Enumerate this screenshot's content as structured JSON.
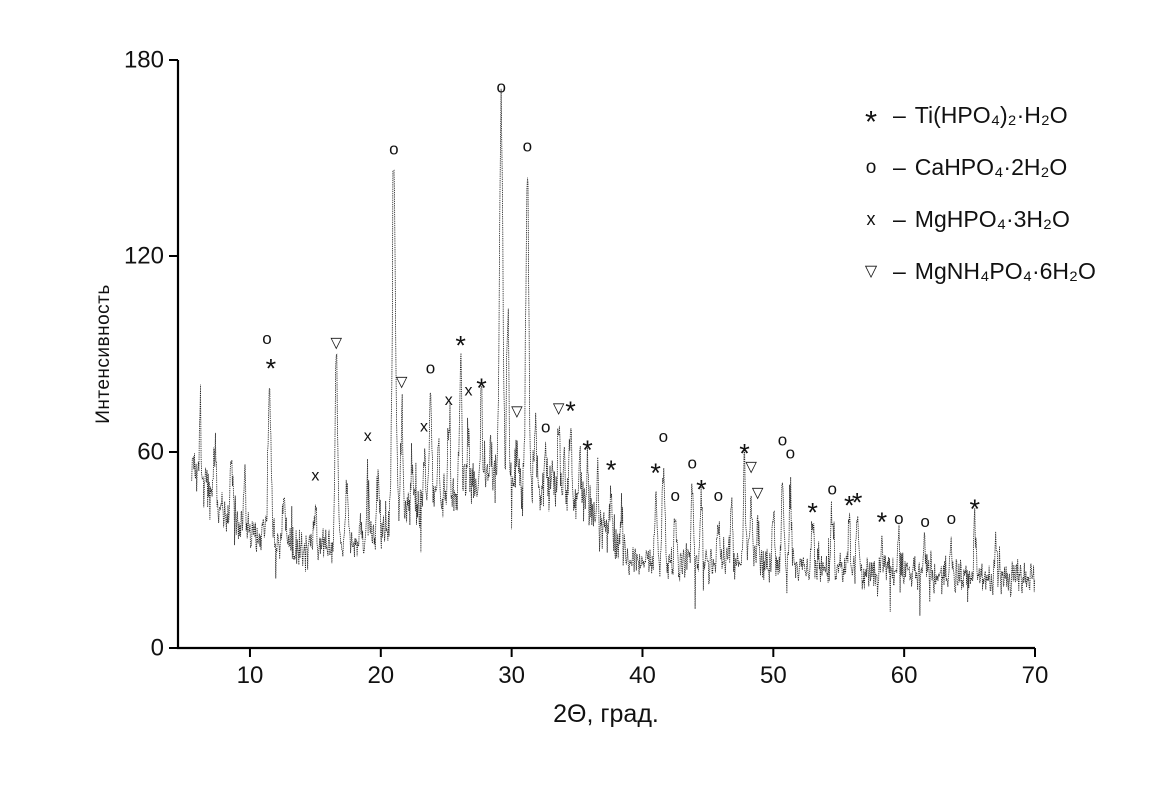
{
  "chart_data": {
    "type": "line",
    "title": "",
    "xlabel": "2Θ, град.",
    "ylabel": "Интенсивность",
    "xlim": [
      4.5,
      70
    ],
    "ylim": [
      0,
      180
    ],
    "xticks": [
      10,
      20,
      30,
      40,
      50,
      60,
      70
    ],
    "yticks": [
      0,
      60,
      120,
      180
    ],
    "grid": false,
    "series_description": "Noisy powder XRD pattern with amorphous halo and labeled crystalline peaks",
    "legend": {
      "position": "top-right",
      "separator": "–",
      "items": [
        {
          "symbol": "*",
          "label": "Ti(HPO₄)₂·H₂O"
        },
        {
          "symbol": "o",
          "label": "CaHPO₄·2H₂O"
        },
        {
          "symbol": "x",
          "label": "MgHPO₄·3H₂O"
        },
        {
          "symbol": "▽",
          "label": "MgNH₄PO₄·6H₂O"
        }
      ]
    },
    "baseline": [
      [
        5.5,
        58
      ],
      [
        6.5,
        50
      ],
      [
        8,
        42
      ],
      [
        9.5,
        37
      ],
      [
        11,
        34
      ],
      [
        13,
        31
      ],
      [
        15,
        30
      ],
      [
        17,
        31
      ],
      [
        19,
        34
      ],
      [
        21,
        39
      ],
      [
        23,
        44
      ],
      [
        25,
        47
      ],
      [
        27,
        50
      ],
      [
        29,
        52
      ],
      [
        31,
        51
      ],
      [
        33,
        48
      ],
      [
        34.5,
        45
      ],
      [
        36,
        41
      ],
      [
        37.5,
        35
      ],
      [
        39,
        29
      ],
      [
        40.5,
        27
      ],
      [
        42,
        26
      ],
      [
        44,
        27
      ],
      [
        46,
        26
      ],
      [
        48,
        26
      ],
      [
        50,
        25
      ],
      [
        52,
        25
      ],
      [
        54,
        24
      ],
      [
        56,
        24
      ],
      [
        58,
        23
      ],
      [
        60,
        23
      ],
      [
        63,
        22
      ],
      [
        66,
        22
      ],
      [
        70,
        21
      ]
    ],
    "peaks": [
      {
        "x": 6.2,
        "i": 72
      },
      {
        "x": 7.3,
        "i": 63
      },
      {
        "x": 8.6,
        "i": 55
      },
      {
        "x": 9.6,
        "i": 50
      },
      {
        "x": 11.5,
        "i": 84,
        "w": 0.11
      },
      {
        "x": 12.6,
        "i": 48
      },
      {
        "x": 15.0,
        "i": 46
      },
      {
        "x": 16.6,
        "i": 89,
        "w": 0.1
      },
      {
        "x": 17.4,
        "i": 50
      },
      {
        "x": 19.0,
        "i": 58
      },
      {
        "x": 19.8,
        "i": 52
      },
      {
        "x": 21.0,
        "i": 150,
        "w": 0.12
      },
      {
        "x": 21.6,
        "i": 74
      },
      {
        "x": 22.4,
        "i": 58
      },
      {
        "x": 23.3,
        "i": 62
      },
      {
        "x": 23.8,
        "i": 78
      },
      {
        "x": 24.4,
        "i": 66
      },
      {
        "x": 25.2,
        "i": 68
      },
      {
        "x": 26.1,
        "i": 87
      },
      {
        "x": 26.7,
        "i": 71
      },
      {
        "x": 27.7,
        "i": 74
      },
      {
        "x": 28.4,
        "i": 60
      },
      {
        "x": 29.2,
        "i": 168,
        "w": 0.12
      },
      {
        "x": 29.7,
        "i": 104
      },
      {
        "x": 30.4,
        "i": 64
      },
      {
        "x": 31.2,
        "i": 147,
        "w": 0.11
      },
      {
        "x": 31.8,
        "i": 70
      },
      {
        "x": 32.6,
        "i": 62
      },
      {
        "x": 33.1,
        "i": 58
      },
      {
        "x": 33.6,
        "i": 66
      },
      {
        "x": 34.0,
        "i": 60
      },
      {
        "x": 34.5,
        "i": 68
      },
      {
        "x": 35.2,
        "i": 58
      },
      {
        "x": 35.8,
        "i": 56
      },
      {
        "x": 36.6,
        "i": 50
      },
      {
        "x": 37.6,
        "i": 50
      },
      {
        "x": 38.4,
        "i": 44
      },
      {
        "x": 41.0,
        "i": 48
      },
      {
        "x": 41.6,
        "i": 56
      },
      {
        "x": 42.5,
        "i": 41
      },
      {
        "x": 43.8,
        "i": 49
      },
      {
        "x": 44.5,
        "i": 44
      },
      {
        "x": 45.8,
        "i": 41
      },
      {
        "x": 46.8,
        "i": 44
      },
      {
        "x": 47.8,
        "i": 54
      },
      {
        "x": 48.3,
        "i": 48
      },
      {
        "x": 48.8,
        "i": 41
      },
      {
        "x": 50.0,
        "i": 42
      },
      {
        "x": 50.7,
        "i": 55
      },
      {
        "x": 51.3,
        "i": 50
      },
      {
        "x": 53.0,
        "i": 38
      },
      {
        "x": 54.5,
        "i": 42
      },
      {
        "x": 55.8,
        "i": 39
      },
      {
        "x": 56.4,
        "i": 40
      },
      {
        "x": 58.3,
        "i": 35
      },
      {
        "x": 59.6,
        "i": 33
      },
      {
        "x": 61.6,
        "i": 32
      },
      {
        "x": 63.6,
        "i": 33
      },
      {
        "x": 65.4,
        "i": 38
      },
      {
        "x": 67.0,
        "i": 30
      }
    ],
    "markers": [
      {
        "symbol": "o",
        "x": 11.3,
        "y": 95
      },
      {
        "symbol": "*",
        "x": 11.6,
        "y": 88
      },
      {
        "symbol": "x",
        "x": 15.0,
        "y": 53
      },
      {
        "symbol": "▽",
        "x": 16.6,
        "y": 94
      },
      {
        "symbol": "x",
        "x": 19.0,
        "y": 65
      },
      {
        "symbol": "o",
        "x": 21.0,
        "y": 153
      },
      {
        "symbol": "▽",
        "x": 21.6,
        "y": 82
      },
      {
        "symbol": "x",
        "x": 23.3,
        "y": 68
      },
      {
        "symbol": "o",
        "x": 23.8,
        "y": 86
      },
      {
        "symbol": "x",
        "x": 25.2,
        "y": 76
      },
      {
        "symbol": "*",
        "x": 26.1,
        "y": 95
      },
      {
        "symbol": "x",
        "x": 26.7,
        "y": 79
      },
      {
        "symbol": "*",
        "x": 27.7,
        "y": 82
      },
      {
        "symbol": "o",
        "x": 29.2,
        "y": 172
      },
      {
        "symbol": "▽",
        "x": 30.4,
        "y": 73
      },
      {
        "symbol": "o",
        "x": 31.2,
        "y": 154
      },
      {
        "symbol": "o",
        "x": 32.6,
        "y": 68
      },
      {
        "symbol": "▽",
        "x": 33.6,
        "y": 74
      },
      {
        "symbol": "*",
        "x": 34.5,
        "y": 75
      },
      {
        "symbol": "*",
        "x": 35.8,
        "y": 63
      },
      {
        "symbol": "*",
        "x": 37.6,
        "y": 57
      },
      {
        "symbol": "*",
        "x": 41.0,
        "y": 56
      },
      {
        "symbol": "o",
        "x": 41.6,
        "y": 65
      },
      {
        "symbol": "o",
        "x": 42.5,
        "y": 47
      },
      {
        "symbol": "o",
        "x": 43.8,
        "y": 57
      },
      {
        "symbol": "*",
        "x": 44.5,
        "y": 51
      },
      {
        "symbol": "o",
        "x": 45.8,
        "y": 47
      },
      {
        "symbol": "*",
        "x": 47.8,
        "y": 62
      },
      {
        "symbol": "▽",
        "x": 48.3,
        "y": 56
      },
      {
        "symbol": "▽",
        "x": 48.8,
        "y": 48
      },
      {
        "symbol": "o",
        "x": 50.7,
        "y": 64
      },
      {
        "symbol": "o",
        "x": 51.3,
        "y": 60
      },
      {
        "symbol": "*",
        "x": 53.0,
        "y": 44
      },
      {
        "symbol": "o",
        "x": 54.5,
        "y": 49
      },
      {
        "symbol": "*",
        "x": 55.8,
        "y": 46
      },
      {
        "symbol": "*",
        "x": 56.4,
        "y": 47
      },
      {
        "symbol": "*",
        "x": 58.3,
        "y": 41
      },
      {
        "symbol": "o",
        "x": 59.6,
        "y": 40
      },
      {
        "symbol": "o",
        "x": 61.6,
        "y": 39
      },
      {
        "symbol": "o",
        "x": 63.6,
        "y": 40
      },
      {
        "symbol": "*",
        "x": 65.4,
        "y": 45
      }
    ],
    "noise_amplitude": 5,
    "trace_color": "#1b1b1b"
  }
}
